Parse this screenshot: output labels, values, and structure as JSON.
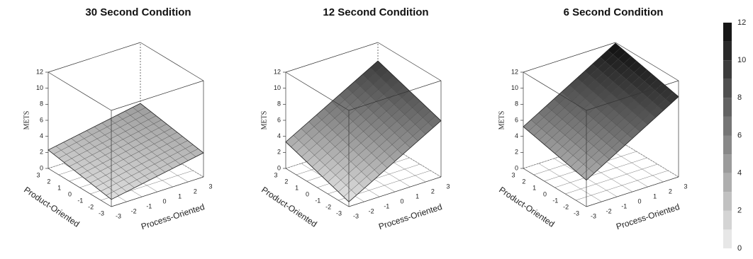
{
  "chart_data": [
    {
      "type": "surface3d",
      "title": "30 Second Condition",
      "zlabel": "METS",
      "xlabel": "Product-Oriented",
      "ylabel": "Process-Oriented",
      "xlim": [
        -3,
        3
      ],
      "ylim": [
        -3,
        3
      ],
      "zlim": [
        0,
        12
      ],
      "xticks": [
        -3,
        -2,
        -1,
        0,
        1,
        2,
        3
      ],
      "yticks": [
        -3,
        -2,
        -1,
        0,
        1,
        2,
        3
      ],
      "zticks": [
        0,
        2,
        4,
        6,
        8,
        10,
        12
      ],
      "x": [
        -3,
        3
      ],
      "y": [
        -3,
        3
      ],
      "z": [
        [
          0.9,
          3.0
        ],
        [
          2.3,
          4.4
        ]
      ]
    },
    {
      "type": "surface3d",
      "title": "12 Second Condition",
      "zlabel": "METS",
      "xlabel": "Product-Oriented",
      "ylabel": "Process-Oriented",
      "xlim": [
        -3,
        3
      ],
      "ylim": [
        -3,
        3
      ],
      "zlim": [
        0,
        12
      ],
      "xticks": [
        -3,
        -2,
        -1,
        0,
        1,
        2,
        3
      ],
      "yticks": [
        -3,
        -2,
        -1,
        0,
        1,
        2,
        3
      ],
      "zticks": [
        0,
        2,
        4,
        6,
        8,
        10,
        12
      ],
      "x": [
        -3,
        3
      ],
      "y": [
        -3,
        3
      ],
      "z": [
        [
          0.6,
          7.0
        ],
        [
          3.3,
          9.7
        ]
      ]
    },
    {
      "type": "surface3d",
      "title": "6 Second Condition",
      "zlabel": "METS",
      "xlabel": "Product-Oriented",
      "ylabel": "Process-Oriented",
      "xlim": [
        -3,
        3
      ],
      "ylim": [
        -3,
        3
      ],
      "zlim": [
        0,
        12
      ],
      "xticks": [
        -3,
        -2,
        -1,
        0,
        1,
        2,
        3
      ],
      "yticks": [
        -3,
        -2,
        -1,
        0,
        1,
        2,
        3
      ],
      "zticks": [
        0,
        2,
        4,
        6,
        8,
        10,
        12
      ],
      "x": [
        -3,
        3
      ],
      "y": [
        -3,
        3
      ],
      "z": [
        [
          3.3,
          10.0
        ],
        [
          5.2,
          11.9
        ]
      ]
    },
    {
      "type": "colorbar",
      "lim": [
        0,
        12
      ],
      "levels": [
        0,
        1,
        2,
        3,
        4,
        5,
        6,
        7,
        8,
        9,
        10,
        11,
        12
      ],
      "ticks": [
        0,
        2,
        4,
        6,
        8,
        10,
        12
      ]
    }
  ]
}
